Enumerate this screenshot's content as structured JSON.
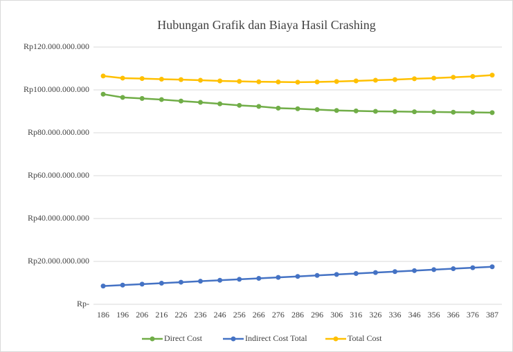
{
  "chart_data": {
    "type": "line",
    "title": "Hubungan Grafik dan Biaya Hasil Crashing",
    "categories": [
      "186",
      "196",
      "206",
      "216",
      "226",
      "236",
      "246",
      "256",
      "266",
      "276",
      "286",
      "296",
      "306",
      "316",
      "326",
      "336",
      "346",
      "356",
      "366",
      "376",
      "387"
    ],
    "series": [
      {
        "name": "Direct Cost",
        "color": "#70ad47",
        "values": [
          98000000000,
          96500000000,
          96000000000,
          95500000000,
          94800000000,
          94200000000,
          93500000000,
          92800000000,
          92300000000,
          91500000000,
          91200000000,
          90800000000,
          90400000000,
          90200000000,
          90000000000,
          89900000000,
          89800000000,
          89700000000,
          89600000000,
          89500000000,
          89400000000
        ]
      },
      {
        "name": "Indirect Cost Total",
        "color": "#4472c4",
        "values": [
          8500000000,
          8950000000,
          9400000000,
          9850000000,
          10300000000,
          10750000000,
          11200000000,
          11650000000,
          12100000000,
          12550000000,
          13000000000,
          13450000000,
          13900000000,
          14350000000,
          14800000000,
          15250000000,
          15700000000,
          16150000000,
          16600000000,
          17050000000,
          17500000000
        ]
      },
      {
        "name": "Total Cost",
        "color": "#ffc000",
        "values": [
          106500000000,
          105500000000,
          105300000000,
          105000000000,
          104800000000,
          104500000000,
          104200000000,
          104000000000,
          103800000000,
          103700000000,
          103600000000,
          103700000000,
          103900000000,
          104200000000,
          104500000000,
          104800000000,
          105200000000,
          105500000000,
          105900000000,
          106300000000,
          106900000000
        ]
      }
    ],
    "ylim": [
      0,
      120000000000
    ],
    "yticks": [
      {
        "value": 0,
        "label": "Rp-"
      },
      {
        "value": 20000000000,
        "label": "Rp20.000.000.000"
      },
      {
        "value": 40000000000,
        "label": "Rp40.000.000.000"
      },
      {
        "value": 60000000000,
        "label": "Rp60.000.000.000"
      },
      {
        "value": 80000000000,
        "label": "Rp80.000.000.000"
      },
      {
        "value": 100000000000,
        "label": "Rp100.000.000.000"
      },
      {
        "value": 120000000000,
        "label": "Rp120.000.000.000"
      }
    ],
    "grid": true,
    "legend": "bottom"
  }
}
